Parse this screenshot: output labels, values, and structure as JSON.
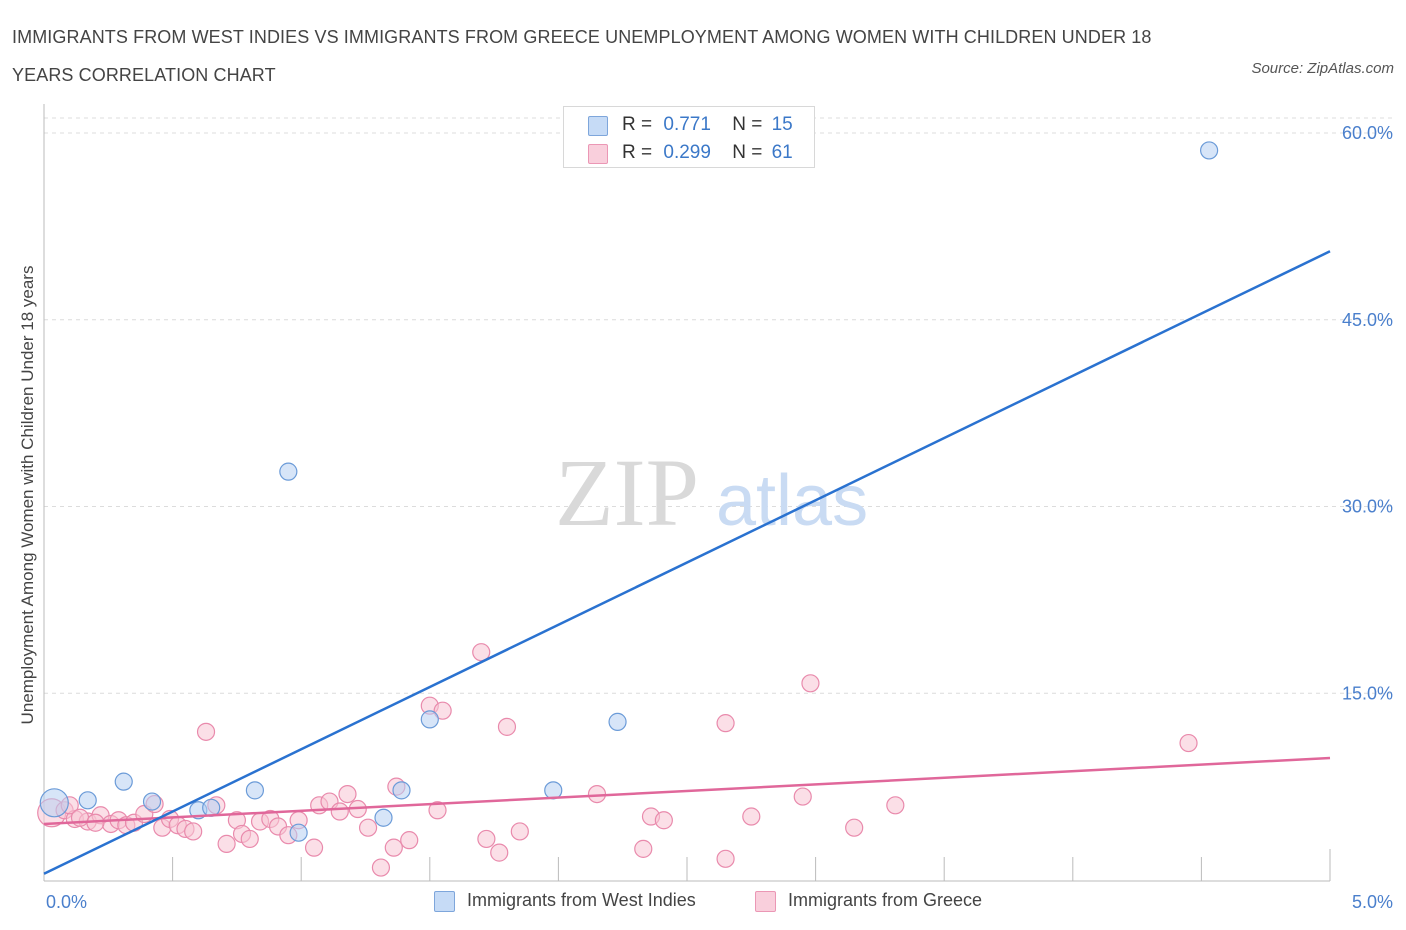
{
  "title": "IMMIGRANTS FROM WEST INDIES VS IMMIGRANTS FROM GREECE UNEMPLOYMENT AMONG WOMEN WITH CHILDREN UNDER 18 YEARS CORRELATION CHART",
  "source": "Source: ZipAtlas.com",
  "watermark": {
    "zip": "ZIP",
    "atlas": "atlas"
  },
  "stats": [
    {
      "r_label": "R =",
      "r_value": "0.771",
      "n_label": "N =",
      "n_value": "15",
      "color": "#9bbff0"
    },
    {
      "r_label": "R =",
      "r_value": "0.299",
      "n_label": "N =",
      "n_value": "61",
      "color": "#f3a9c2"
    }
  ],
  "legend": [
    {
      "label": "Immigrants from West Indies",
      "color": "#9bbff0"
    },
    {
      "label": "Immigrants from Greece",
      "color": "#f3a9c2"
    }
  ],
  "colors": {
    "blue_fill": "#b7d0f3",
    "blue_stroke": "#6b9bd8",
    "blue_line": "#2a72d0",
    "pink_fill": "#f7c4d4",
    "pink_stroke": "#e98aac",
    "pink_line": "#e0679a",
    "tick_text": "#4a7fcc",
    "grid": "#dcdcdc"
  },
  "chart_data": {
    "type": "scatter",
    "title": "Immigrants from West Indies vs Immigrants from Greece Unemployment Among Women with Children Under 18 years Correlation Chart",
    "xlabel": "",
    "ylabel": "Unemployment Among Women with Children Under 18 years",
    "xlim": [
      0,
      5
    ],
    "ylim": [
      0,
      60
    ],
    "x_tick_labels": [
      "0.0%",
      "5.0%"
    ],
    "y_ticks": [
      {
        "value": 15,
        "label": "15.0%"
      },
      {
        "value": 30,
        "label": "30.0%"
      },
      {
        "value": 45,
        "label": "45.0%"
      },
      {
        "value": 60,
        "label": "60.0%"
      }
    ],
    "grid": true,
    "series": [
      {
        "name": "Immigrants from West Indies",
        "R": 0.771,
        "N": 15,
        "trend": {
          "x": [
            0.0,
            5.0
          ],
          "y": [
            0.5,
            50.5
          ]
        },
        "points": [
          {
            "x": 0.04,
            "y": 6.2,
            "big": true
          },
          {
            "x": 0.17,
            "y": 6.4
          },
          {
            "x": 0.31,
            "y": 7.9
          },
          {
            "x": 0.42,
            "y": 6.3
          },
          {
            "x": 0.6,
            "y": 5.6
          },
          {
            "x": 0.65,
            "y": 5.8
          },
          {
            "x": 0.82,
            "y": 7.2
          },
          {
            "x": 0.95,
            "y": 32.8
          },
          {
            "x": 0.99,
            "y": 3.8
          },
          {
            "x": 1.32,
            "y": 5.0
          },
          {
            "x": 1.39,
            "y": 7.2
          },
          {
            "x": 1.5,
            "y": 12.9
          },
          {
            "x": 1.98,
            "y": 7.2
          },
          {
            "x": 2.23,
            "y": 12.7
          },
          {
            "x": 4.53,
            "y": 58.6
          }
        ]
      },
      {
        "name": "Immigrants from Greece",
        "R": 0.299,
        "N": 61,
        "trend": {
          "x": [
            0.0,
            5.0
          ],
          "y": [
            4.5,
            9.8
          ]
        },
        "points": [
          {
            "x": 0.03,
            "y": 5.4,
            "big": true
          },
          {
            "x": 0.08,
            "y": 5.6
          },
          {
            "x": 0.12,
            "y": 4.9
          },
          {
            "x": 0.17,
            "y": 4.7
          },
          {
            "x": 0.22,
            "y": 5.2
          },
          {
            "x": 0.26,
            "y": 4.5
          },
          {
            "x": 0.29,
            "y": 4.8
          },
          {
            "x": 0.32,
            "y": 4.4
          },
          {
            "x": 0.35,
            "y": 4.6
          },
          {
            "x": 0.39,
            "y": 5.3
          },
          {
            "x": 0.43,
            "y": 6.1
          },
          {
            "x": 0.46,
            "y": 4.2
          },
          {
            "x": 0.49,
            "y": 4.9
          },
          {
            "x": 0.52,
            "y": 4.4
          },
          {
            "x": 0.55,
            "y": 4.1
          },
          {
            "x": 0.58,
            "y": 3.9
          },
          {
            "x": 0.63,
            "y": 11.9
          },
          {
            "x": 0.67,
            "y": 6.0
          },
          {
            "x": 0.71,
            "y": 2.9
          },
          {
            "x": 0.75,
            "y": 4.8
          },
          {
            "x": 0.77,
            "y": 3.7
          },
          {
            "x": 0.8,
            "y": 3.3
          },
          {
            "x": 0.84,
            "y": 4.7
          },
          {
            "x": 0.88,
            "y": 4.9
          },
          {
            "x": 0.91,
            "y": 4.3
          },
          {
            "x": 0.95,
            "y": 3.6
          },
          {
            "x": 0.99,
            "y": 4.8
          },
          {
            "x": 1.05,
            "y": 2.6
          },
          {
            "x": 1.07,
            "y": 6.0
          },
          {
            "x": 1.11,
            "y": 6.3
          },
          {
            "x": 1.15,
            "y": 5.5
          },
          {
            "x": 1.18,
            "y": 6.9
          },
          {
            "x": 1.22,
            "y": 5.7
          },
          {
            "x": 1.26,
            "y": 4.2
          },
          {
            "x": 1.31,
            "y": 1.0
          },
          {
            "x": 1.36,
            "y": 2.6
          },
          {
            "x": 1.37,
            "y": 7.5
          },
          {
            "x": 1.42,
            "y": 3.2
          },
          {
            "x": 1.5,
            "y": 14.0
          },
          {
            "x": 1.53,
            "y": 5.6
          },
          {
            "x": 1.55,
            "y": 13.6
          },
          {
            "x": 1.7,
            "y": 18.3
          },
          {
            "x": 1.72,
            "y": 3.3
          },
          {
            "x": 1.77,
            "y": 2.2
          },
          {
            "x": 1.8,
            "y": 12.3
          },
          {
            "x": 1.85,
            "y": 3.9
          },
          {
            "x": 2.15,
            "y": 6.9
          },
          {
            "x": 2.33,
            "y": 2.5
          },
          {
            "x": 2.36,
            "y": 5.1
          },
          {
            "x": 2.41,
            "y": 4.8
          },
          {
            "x": 2.65,
            "y": 1.7
          },
          {
            "x": 2.65,
            "y": 12.6
          },
          {
            "x": 2.75,
            "y": 5.1
          },
          {
            "x": 2.95,
            "y": 6.7
          },
          {
            "x": 2.98,
            "y": 15.8
          },
          {
            "x": 3.15,
            "y": 4.2
          },
          {
            "x": 3.31,
            "y": 6.0
          },
          {
            "x": 4.45,
            "y": 11.0
          },
          {
            "x": 0.1,
            "y": 6.0
          },
          {
            "x": 0.14,
            "y": 5.0
          },
          {
            "x": 0.2,
            "y": 4.6
          }
        ]
      }
    ]
  }
}
